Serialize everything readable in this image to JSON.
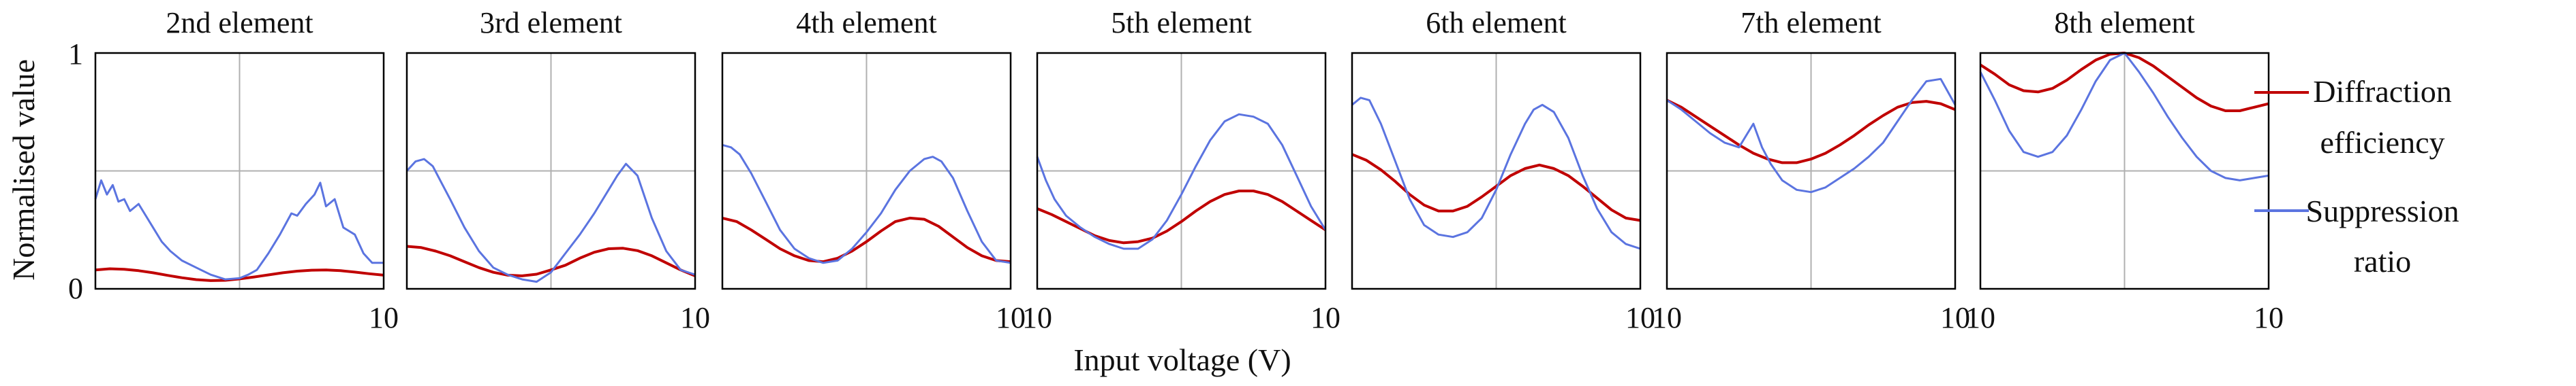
{
  "figure": {
    "ylabel": "Normalised value",
    "xlabel": "Input voltage (V)",
    "legend": [
      "Diffraction efficiency",
      "Suppression ratio"
    ]
  },
  "colors": {
    "efficiency": "#c00000",
    "suppression": "#5b74e0",
    "grid": "#b0b0b0",
    "frame": "#000000"
  },
  "chart_data": [
    {
      "type": "line",
      "title": "2nd element",
      "xlim": [
        0,
        10
      ],
      "ylim": [
        0,
        1
      ],
      "xticks": [
        "",
        "10"
      ],
      "yticks": [
        "0",
        "1"
      ],
      "series": [
        {
          "name": "Diffraction efficiency",
          "x": [
            0,
            0.5,
            1,
            1.5,
            2,
            2.5,
            3,
            3.5,
            4,
            4.5,
            5,
            5.5,
            6,
            6.5,
            7,
            7.5,
            8,
            8.5,
            9,
            9.5,
            10
          ],
          "y": [
            0.08,
            0.085,
            0.083,
            0.077,
            0.068,
            0.057,
            0.047,
            0.039,
            0.035,
            0.036,
            0.042,
            0.05,
            0.059,
            0.068,
            0.075,
            0.079,
            0.08,
            0.077,
            0.071,
            0.064,
            0.058
          ]
        },
        {
          "name": "Suppression ratio",
          "x": [
            0,
            0.2,
            0.4,
            0.6,
            0.8,
            1,
            1.2,
            1.5,
            1.8,
            2,
            2.3,
            2.6,
            3,
            3.5,
            4,
            4.5,
            5,
            5.3,
            5.6,
            6,
            6.4,
            6.8,
            7,
            7.3,
            7.6,
            7.8,
            8,
            8.3,
            8.6,
            9,
            9.3,
            9.6,
            10
          ],
          "y": [
            0.38,
            0.46,
            0.4,
            0.44,
            0.37,
            0.38,
            0.33,
            0.36,
            0.3,
            0.26,
            0.2,
            0.16,
            0.12,
            0.09,
            0.06,
            0.04,
            0.045,
            0.06,
            0.08,
            0.15,
            0.23,
            0.32,
            0.31,
            0.36,
            0.4,
            0.45,
            0.35,
            0.38,
            0.26,
            0.23,
            0.15,
            0.11,
            0.11
          ]
        }
      ]
    },
    {
      "type": "line",
      "title": "3rd element",
      "xlim": [
        0,
        10
      ],
      "ylim": [
        0,
        1
      ],
      "xticks": [
        "",
        "10"
      ],
      "yticks": [
        "",
        ""
      ],
      "series": [
        {
          "name": "Diffraction efficiency",
          "x": [
            0,
            0.5,
            1,
            1.5,
            2,
            2.5,
            3,
            3.5,
            4,
            4.5,
            5,
            5.5,
            6,
            6.5,
            7,
            7.5,
            8,
            8.5,
            9,
            9.5,
            10
          ],
          "y": [
            0.18,
            0.175,
            0.16,
            0.14,
            0.115,
            0.09,
            0.07,
            0.058,
            0.055,
            0.062,
            0.08,
            0.1,
            0.13,
            0.155,
            0.17,
            0.172,
            0.162,
            0.14,
            0.11,
            0.08,
            0.055
          ]
        },
        {
          "name": "Suppression ratio",
          "x": [
            0,
            0.3,
            0.6,
            0.9,
            1.2,
            1.5,
            2,
            2.5,
            3,
            3.5,
            4,
            4.5,
            5,
            5.5,
            6,
            6.5,
            7,
            7.3,
            7.6,
            8,
            8.5,
            9,
            9.5,
            10
          ],
          "y": [
            0.5,
            0.54,
            0.55,
            0.52,
            0.45,
            0.38,
            0.26,
            0.16,
            0.09,
            0.06,
            0.04,
            0.03,
            0.07,
            0.15,
            0.23,
            0.32,
            0.42,
            0.48,
            0.53,
            0.48,
            0.3,
            0.16,
            0.08,
            0.06
          ]
        }
      ]
    },
    {
      "type": "line",
      "title": "4th element",
      "xlim": [
        0,
        10
      ],
      "ylim": [
        0,
        1
      ],
      "xticks": [
        "",
        "10"
      ],
      "yticks": [
        "",
        ""
      ],
      "series": [
        {
          "name": "Diffraction efficiency",
          "x": [
            0,
            0.5,
            1,
            1.5,
            2,
            2.5,
            3,
            3.5,
            4,
            4.5,
            5,
            5.5,
            6,
            6.5,
            7,
            7.5,
            8,
            8.5,
            9,
            9.5,
            10
          ],
          "y": [
            0.3,
            0.285,
            0.25,
            0.21,
            0.17,
            0.14,
            0.12,
            0.115,
            0.13,
            0.16,
            0.2,
            0.245,
            0.285,
            0.3,
            0.295,
            0.265,
            0.22,
            0.175,
            0.14,
            0.12,
            0.115
          ]
        },
        {
          "name": "Suppression ratio",
          "x": [
            0,
            0.3,
            0.6,
            1,
            1.5,
            2,
            2.5,
            3,
            3.5,
            4,
            4.5,
            5,
            5.5,
            6,
            6.5,
            7,
            7.3,
            7.6,
            8,
            8.5,
            9,
            9.5,
            10
          ],
          "y": [
            0.61,
            0.6,
            0.57,
            0.49,
            0.37,
            0.25,
            0.17,
            0.13,
            0.11,
            0.12,
            0.17,
            0.24,
            0.32,
            0.42,
            0.5,
            0.55,
            0.56,
            0.54,
            0.47,
            0.33,
            0.2,
            0.12,
            0.11
          ]
        }
      ]
    },
    {
      "type": "line",
      "title": "5th element",
      "xlim": [
        0,
        10
      ],
      "ylim": [
        0,
        1
      ],
      "xticks": [
        "10",
        "10"
      ],
      "yticks": [
        "",
        ""
      ],
      "series": [
        {
          "name": "Diffraction efficiency",
          "x": [
            0,
            0.5,
            1,
            1.5,
            2,
            2.5,
            3,
            3.5,
            4,
            4.5,
            5,
            5.5,
            6,
            6.5,
            7,
            7.5,
            8,
            8.5,
            9,
            9.5,
            10
          ],
          "y": [
            0.34,
            0.315,
            0.285,
            0.255,
            0.225,
            0.205,
            0.195,
            0.2,
            0.215,
            0.245,
            0.285,
            0.33,
            0.37,
            0.4,
            0.415,
            0.415,
            0.4,
            0.37,
            0.33,
            0.29,
            0.25
          ]
        },
        {
          "name": "Suppression ratio",
          "x": [
            0,
            0.3,
            0.6,
            1,
            1.5,
            2,
            2.5,
            3,
            3.5,
            4,
            4.5,
            5,
            5.5,
            6,
            6.5,
            7,
            7.5,
            8,
            8.5,
            9,
            9.5,
            10
          ],
          "y": [
            0.56,
            0.46,
            0.38,
            0.31,
            0.26,
            0.22,
            0.19,
            0.17,
            0.17,
            0.21,
            0.29,
            0.4,
            0.52,
            0.63,
            0.71,
            0.74,
            0.73,
            0.7,
            0.61,
            0.48,
            0.35,
            0.25
          ]
        }
      ]
    },
    {
      "type": "line",
      "title": "6th element",
      "xlim": [
        0,
        10
      ],
      "ylim": [
        0,
        1
      ],
      "xticks": [
        "",
        "10"
      ],
      "yticks": [
        "",
        ""
      ],
      "series": [
        {
          "name": "Diffraction efficiency",
          "x": [
            0,
            0.5,
            1,
            1.5,
            2,
            2.5,
            3,
            3.5,
            4,
            4.5,
            5,
            5.5,
            6,
            6.5,
            7,
            7.5,
            8,
            8.5,
            9,
            9.5,
            10
          ],
          "y": [
            0.57,
            0.545,
            0.505,
            0.455,
            0.4,
            0.355,
            0.33,
            0.33,
            0.35,
            0.39,
            0.435,
            0.48,
            0.51,
            0.525,
            0.51,
            0.48,
            0.435,
            0.385,
            0.335,
            0.3,
            0.29
          ]
        },
        {
          "name": "Suppression ratio",
          "x": [
            0,
            0.3,
            0.6,
            1,
            1.5,
            2,
            2.5,
            3,
            3.5,
            4,
            4.5,
            5,
            5.5,
            6,
            6.3,
            6.6,
            7,
            7.5,
            8,
            8.5,
            9,
            9.5,
            10
          ],
          "y": [
            0.78,
            0.81,
            0.8,
            0.7,
            0.54,
            0.38,
            0.27,
            0.23,
            0.22,
            0.24,
            0.3,
            0.42,
            0.57,
            0.7,
            0.76,
            0.78,
            0.75,
            0.64,
            0.48,
            0.34,
            0.24,
            0.19,
            0.17
          ]
        }
      ]
    },
    {
      "type": "line",
      "title": "7th element",
      "xlim": [
        0,
        10
      ],
      "ylim": [
        0,
        1
      ],
      "xticks": [
        "10",
        "10"
      ],
      "yticks": [
        "",
        ""
      ],
      "series": [
        {
          "name": "Diffraction efficiency",
          "x": [
            0,
            0.5,
            1,
            1.5,
            2,
            2.5,
            3,
            3.5,
            4,
            4.5,
            5,
            5.5,
            6,
            6.5,
            7,
            7.5,
            8,
            8.5,
            9,
            9.5,
            10
          ],
          "y": [
            0.8,
            0.77,
            0.73,
            0.69,
            0.65,
            0.61,
            0.575,
            0.55,
            0.535,
            0.535,
            0.55,
            0.575,
            0.61,
            0.65,
            0.695,
            0.735,
            0.77,
            0.79,
            0.795,
            0.785,
            0.76
          ]
        },
        {
          "name": "Suppression ratio",
          "x": [
            0,
            0.5,
            1,
            1.5,
            2,
            2.5,
            2.8,
            3,
            3.3,
            3.6,
            4,
            4.5,
            5,
            5.5,
            6,
            6.5,
            7,
            7.5,
            8,
            8.5,
            9,
            9.5,
            10
          ],
          "y": [
            0.8,
            0.76,
            0.71,
            0.66,
            0.62,
            0.6,
            0.66,
            0.7,
            0.6,
            0.53,
            0.46,
            0.42,
            0.41,
            0.43,
            0.47,
            0.51,
            0.56,
            0.62,
            0.71,
            0.8,
            0.88,
            0.89,
            0.78
          ]
        }
      ]
    },
    {
      "type": "line",
      "title": "8th element",
      "xlim": [
        0,
        10
      ],
      "ylim": [
        0,
        1
      ],
      "xticks": [
        "10",
        "10"
      ],
      "yticks": [
        "",
        ""
      ],
      "series": [
        {
          "name": "Diffraction efficiency",
          "x": [
            0,
            0.5,
            1,
            1.5,
            2,
            2.5,
            3,
            3.5,
            4,
            4.5,
            5,
            5.5,
            6,
            6.5,
            7,
            7.5,
            8,
            8.5,
            9,
            9.5,
            10
          ],
          "y": [
            0.95,
            0.91,
            0.865,
            0.84,
            0.835,
            0.85,
            0.885,
            0.93,
            0.97,
            0.995,
            1.0,
            0.98,
            0.945,
            0.9,
            0.855,
            0.81,
            0.775,
            0.755,
            0.755,
            0.77,
            0.785
          ]
        },
        {
          "name": "Suppression ratio",
          "x": [
            0,
            0.5,
            1,
            1.5,
            2,
            2.5,
            3,
            3.5,
            4,
            4.5,
            5,
            5.5,
            6,
            6.5,
            7,
            7.5,
            8,
            8.5,
            9,
            9.5,
            10
          ],
          "y": [
            0.92,
            0.8,
            0.67,
            0.58,
            0.56,
            0.58,
            0.65,
            0.76,
            0.88,
            0.97,
            1.0,
            0.92,
            0.83,
            0.73,
            0.64,
            0.56,
            0.5,
            0.47,
            0.46,
            0.47,
            0.48
          ]
        }
      ]
    }
  ]
}
